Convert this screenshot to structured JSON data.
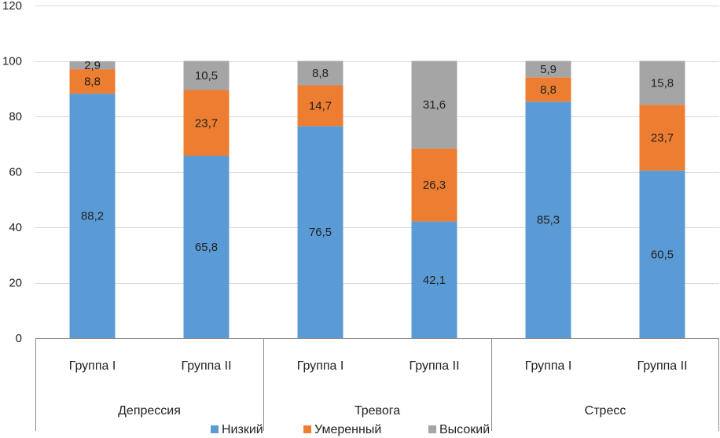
{
  "chart_data": {
    "type": "bar",
    "stacked": true,
    "ylim": [
      0,
      120
    ],
    "yticks": [
      0,
      20,
      40,
      60,
      80,
      100,
      120
    ],
    "gridlines": true,
    "legend_position": "bottom",
    "group_labels": [
      "Депрессия",
      "Тревога",
      "Стресс"
    ],
    "categories": [
      "Группа I",
      "Группа II",
      "Группа I",
      "Группа II",
      "Группа I",
      "Группа II"
    ],
    "series": [
      {
        "name": "Низкий",
        "color": "#5b9bd5",
        "values": [
          88.2,
          65.8,
          76.5,
          42.1,
          85.3,
          60.5
        ],
        "labels": [
          "88,2",
          "65,8",
          "76,5",
          "42,1",
          "85,3",
          "60,5"
        ]
      },
      {
        "name": "Умеренный",
        "color": "#ed7d31",
        "values": [
          8.8,
          23.7,
          14.7,
          26.3,
          8.8,
          23.7
        ],
        "labels": [
          "8,8",
          "23,7",
          "14,7",
          "26,3",
          "8,8",
          "23,7"
        ]
      },
      {
        "name": "Высокий",
        "color": "#a5a5a5",
        "values": [
          2.9,
          10.5,
          8.8,
          31.6,
          5.9,
          15.8
        ],
        "labels": [
          "2,9",
          "10,5",
          "8,8",
          "31,6",
          "5,9",
          "15,8"
        ]
      }
    ]
  }
}
